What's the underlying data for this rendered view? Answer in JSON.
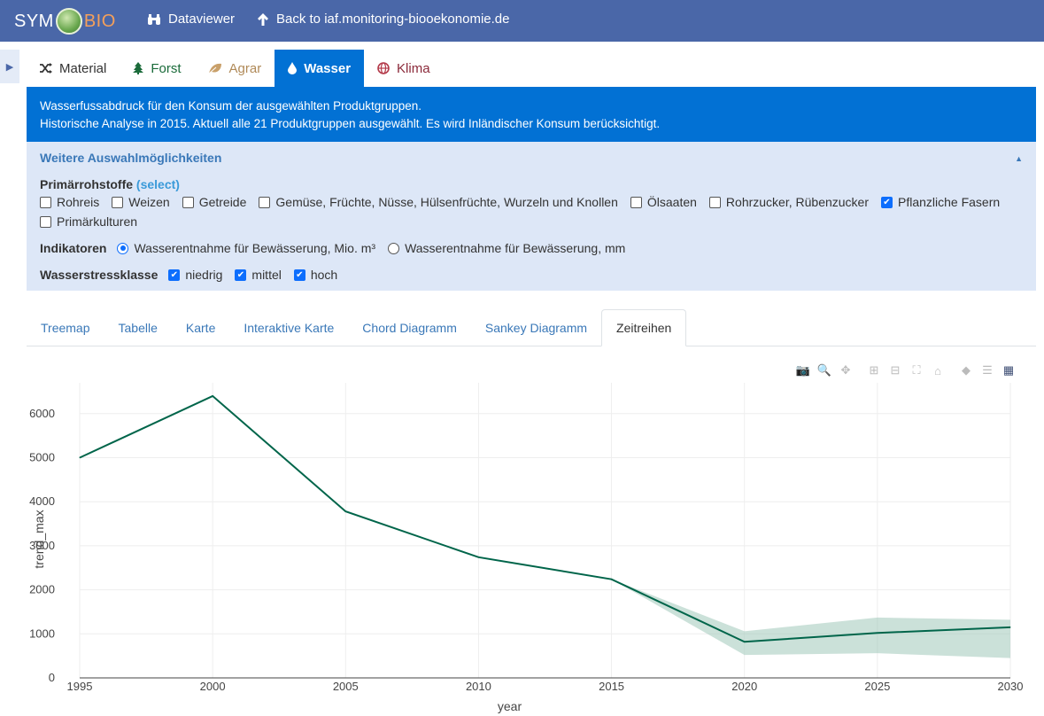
{
  "header": {
    "logo_sym": "SYM",
    "logo_bio": "BIO",
    "nav": [
      {
        "label": "Dataviewer",
        "icon": "binoculars-icon"
      },
      {
        "label": "Back to iaf.monitoring-biooekonomie.de",
        "icon": "arrow-up-icon"
      }
    ]
  },
  "theme_tabs": [
    {
      "label": "Material",
      "icon": "shuffle-icon",
      "color": "#333333",
      "active": false
    },
    {
      "label": "Forst",
      "icon": "tree-icon",
      "color": "#1a6b3a",
      "active": false
    },
    {
      "label": "Agrar",
      "icon": "leaf-icon",
      "color": "#b08a58",
      "active": false
    },
    {
      "label": "Wasser",
      "icon": "drop-icon",
      "color": "#ffffff",
      "active": true
    },
    {
      "label": "Klima",
      "icon": "globe-icon",
      "color": "#8b2a3a",
      "active": false
    }
  ],
  "info": {
    "line1": "Wasserfussabdruck für den Konsum der ausgewählten Produktgruppen.",
    "line2": "Historische Analyse in 2015. Aktuell alle 21 Produktgruppen ausgewählt. Es wird Inländischer Konsum berücksichtigt."
  },
  "options": {
    "title": "Weitere Auswahlmöglichkeiten",
    "primaer_label": "Primärrohstoffe",
    "primaer_select": "(select)",
    "primaer_items": [
      {
        "label": "Rohreis",
        "checked": false
      },
      {
        "label": "Weizen",
        "checked": false
      },
      {
        "label": "Getreide",
        "checked": false
      },
      {
        "label": "Gemüse, Früchte, Nüsse, Hülsenfrüchte, Wurzeln und Knollen",
        "checked": false
      },
      {
        "label": "Ölsaaten",
        "checked": false
      },
      {
        "label": "Rohrzucker, Rübenzucker",
        "checked": false
      },
      {
        "label": "Pflanzliche Fasern",
        "checked": true
      },
      {
        "label": "Primärkulturen",
        "checked": false
      }
    ],
    "indikatoren_label": "Indikatoren",
    "indikatoren_items": [
      {
        "label": "Wasserentnahme für Bewässerung, Mio. m³",
        "checked": true
      },
      {
        "label": "Wasserentnahme für Bewässerung, mm",
        "checked": false
      }
    ],
    "stress_label": "Wasserstressklasse",
    "stress_items": [
      {
        "label": "niedrig",
        "checked": true
      },
      {
        "label": "mittel",
        "checked": true
      },
      {
        "label": "hoch",
        "checked": true
      }
    ]
  },
  "view_tabs": [
    {
      "label": "Treemap",
      "active": false
    },
    {
      "label": "Tabelle",
      "active": false
    },
    {
      "label": "Karte",
      "active": false
    },
    {
      "label": "Interaktive Karte",
      "active": false
    },
    {
      "label": "Chord Diagramm",
      "active": false
    },
    {
      "label": "Sankey Diagramm",
      "active": false
    },
    {
      "label": "Zeitreihen",
      "active": true
    }
  ],
  "modebar": [
    "camera-icon",
    "zoom-icon",
    "pan-icon",
    "zoom-in-icon",
    "zoom-out-icon",
    "autoscale-icon",
    "home-icon",
    "spike-icon",
    "compare-icon",
    "plotly-logo-icon"
  ],
  "chart_data": {
    "type": "line",
    "xlabel": "year",
    "ylabel": "trend_max",
    "xlim": [
      1995,
      2030
    ],
    "ylim": [
      0,
      6700
    ],
    "x_ticks": [
      1995,
      2000,
      2005,
      2010,
      2015,
      2020,
      2025,
      2030
    ],
    "y_ticks": [
      0,
      1000,
      2000,
      3000,
      4000,
      5000,
      6000
    ],
    "grid": true,
    "line_color": "#00654a",
    "band_color": "#a9cdbf",
    "series": [
      {
        "x": [
          1995,
          2000,
          2005,
          2010,
          2015,
          2020,
          2025,
          2030
        ],
        "values": [
          5000,
          6400,
          3780,
          2740,
          2240,
          820,
          1020,
          1150
        ]
      }
    ],
    "band": {
      "x": [
        2015,
        2020,
        2025,
        2030
      ],
      "upper": [
        2240,
        1060,
        1370,
        1320
      ],
      "lower": [
        2240,
        520,
        560,
        450
      ]
    }
  }
}
